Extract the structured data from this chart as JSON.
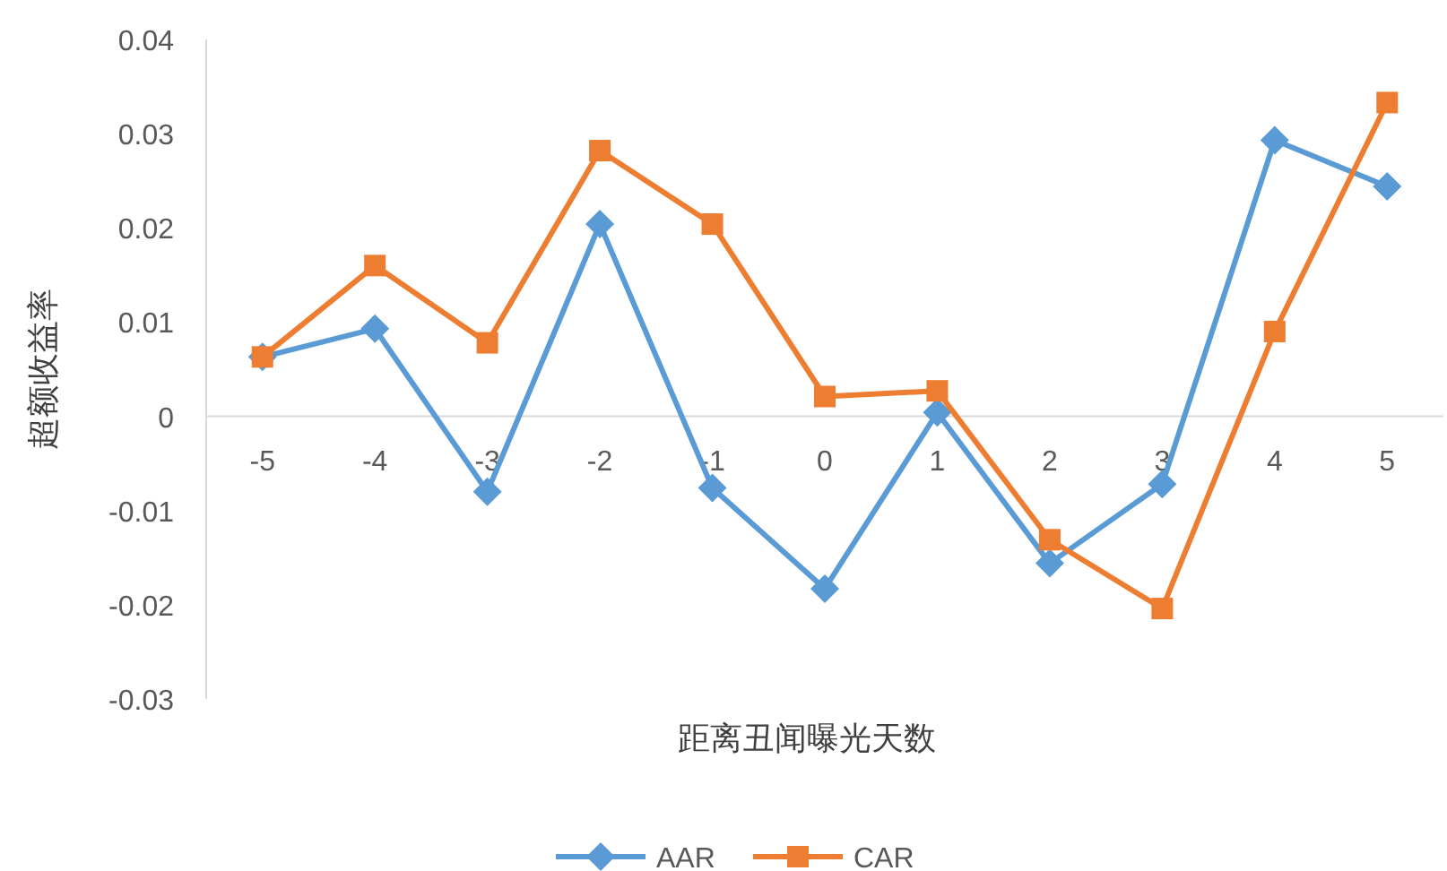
{
  "chart_data": {
    "type": "line",
    "xlabel": "距离丑闻曝光天数",
    "ylabel": "超额收益率",
    "categories": [
      "-5",
      "-4",
      "-3",
      "-2",
      "-1",
      "0",
      "1",
      "2",
      "3",
      "4",
      "5"
    ],
    "ylim": [
      -0.03,
      0.04
    ],
    "yticks": [
      -0.03,
      -0.02,
      -0.01,
      0,
      0.01,
      0.02,
      0.03,
      0.04
    ],
    "grid": false,
    "legend": "bottom",
    "series": [
      {
        "name": "AAR",
        "color": "#5b9bd5",
        "marker": "diamond",
        "values": [
          0.0063,
          0.0093,
          -0.008,
          0.0204,
          -0.0076,
          -0.0183,
          0.0004,
          -0.0156,
          -0.0072,
          0.0293,
          0.0244
        ]
      },
      {
        "name": "CAR",
        "color": "#ed7d31",
        "marker": "square",
        "values": [
          0.0063,
          0.016,
          0.0078,
          0.0282,
          0.0204,
          0.0021,
          0.0027,
          -0.0131,
          -0.0204,
          0.009,
          0.0333
        ]
      }
    ]
  }
}
